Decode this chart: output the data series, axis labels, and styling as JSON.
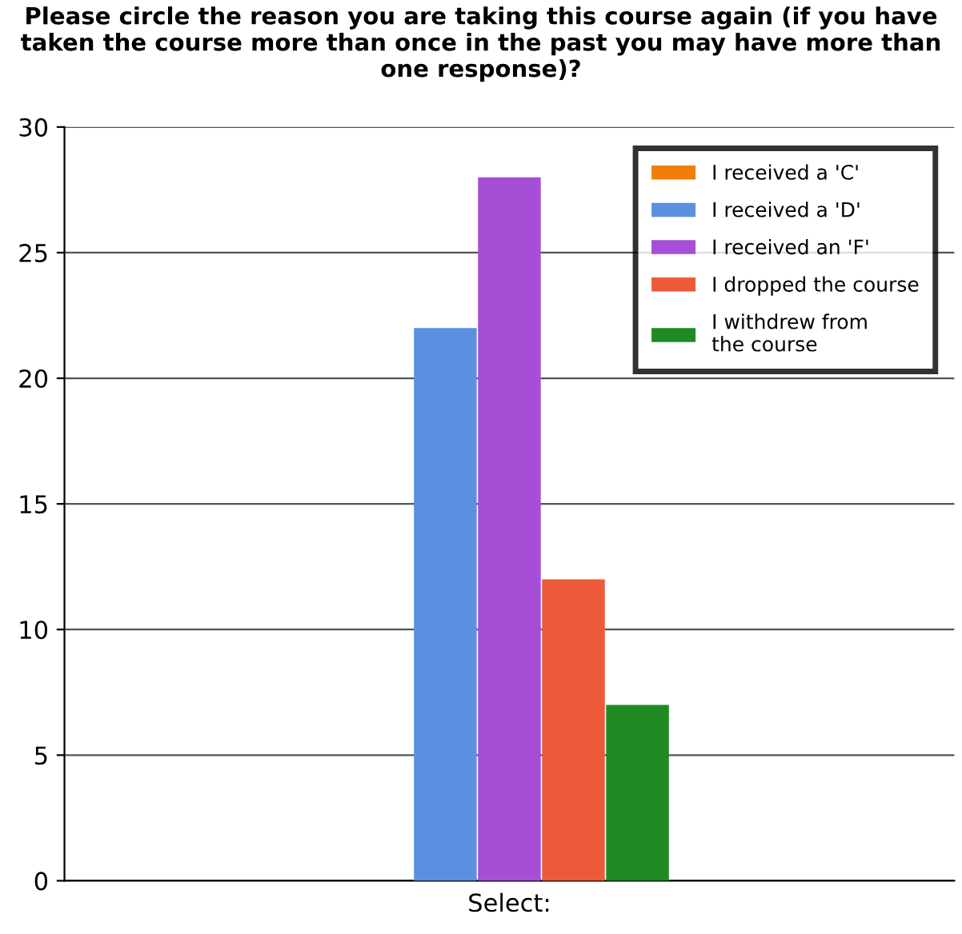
{
  "chart_data": {
    "type": "bar",
    "title": "Please circle the reason you are taking this course again (if you have taken the course more than once in the past you may have more than one response)?",
    "categories": [
      null
    ],
    "xlabel": "Select:",
    "series": [
      {
        "name": "I received a 'C'",
        "color": "#f07f09",
        "values": [
          0
        ]
      },
      {
        "name": "I received a 'D'",
        "color": "#5b8fe0",
        "values": [
          22
        ]
      },
      {
        "name": "I received an 'F'",
        "color": "#a64fd6",
        "values": [
          28
        ]
      },
      {
        "name": "I dropped the course",
        "color": "#ec5a3a",
        "values": [
          12
        ]
      },
      {
        "name": "I withdrew from\nthe course",
        "color": "#1f8a24",
        "values": [
          7
        ]
      }
    ],
    "ylim": [
      0,
      30
    ],
    "yticks": [
      0,
      5,
      10,
      15,
      20,
      25,
      30
    ],
    "grid": "y",
    "legend": "top right"
  }
}
